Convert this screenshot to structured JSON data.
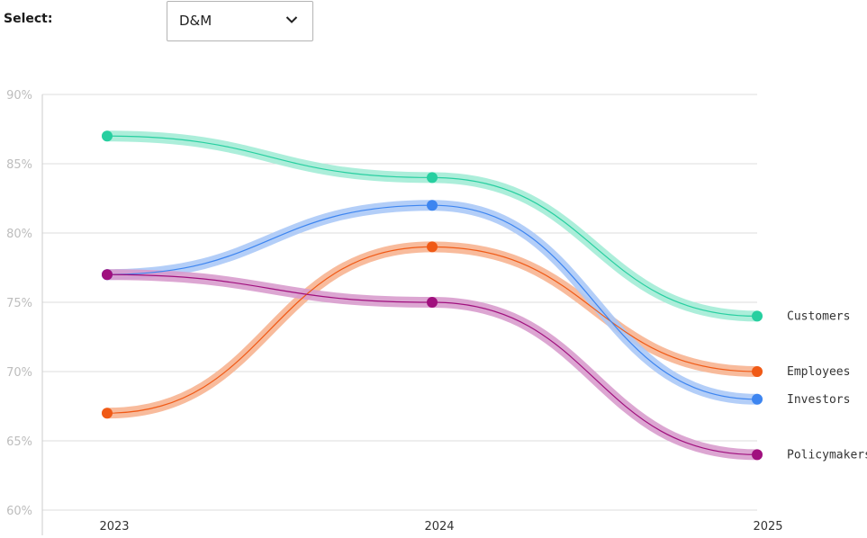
{
  "controls": {
    "select_label": "Select:",
    "selected_value": "D&M"
  },
  "colors": {
    "grid": "#dedede",
    "axis": "#cccccc"
  },
  "chart_data": {
    "type": "line",
    "x": [
      2023,
      2024,
      2025
    ],
    "x_tick_labels": [
      "2023",
      "2024",
      "2025"
    ],
    "y_tick_labels": [
      "60%",
      "65%",
      "70%",
      "75%",
      "80%",
      "85%",
      "90%"
    ],
    "y_ticks": [
      60,
      65,
      70,
      75,
      80,
      85,
      90
    ],
    "ylim": [
      60,
      90
    ],
    "grid": true,
    "legend": "right-end labels",
    "series": [
      {
        "name": "Customers",
        "values": [
          87,
          84,
          74
        ],
        "color": "#27cfa0",
        "halo": "#a3ecd6"
      },
      {
        "name": "Employees",
        "values": [
          67,
          79,
          70
        ],
        "color": "#f05a16",
        "halo": "#f7b491"
      },
      {
        "name": "Investors",
        "values": [
          77,
          82,
          68
        ],
        "color": "#3d85f0",
        "halo": "#abc9f7"
      },
      {
        "name": "Policymakers",
        "values": [
          77,
          75,
          64
        ],
        "color": "#a0107e",
        "halo": "#d89ccd"
      }
    ]
  }
}
